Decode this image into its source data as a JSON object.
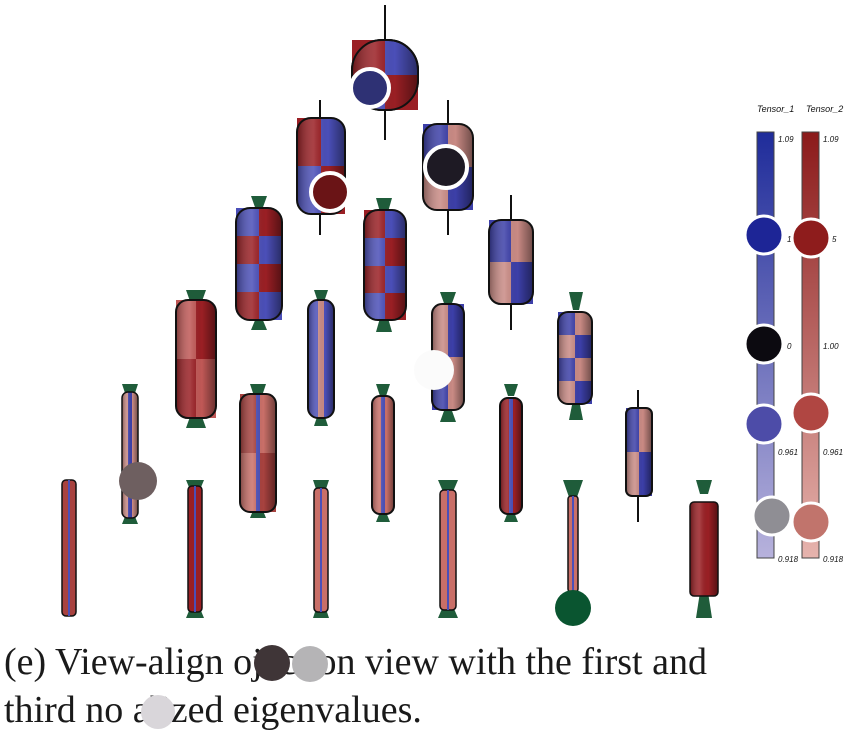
{
  "colorbars": {
    "tensor1": {
      "title": "Tensor_1",
      "ticks": [
        "1.09",
        "1",
        "0",
        "0.961",
        "0.918"
      ],
      "color_top": "#1f2c9a",
      "color_bottom": "#b7b2dc"
    },
    "tensor2": {
      "title": "Tensor_2",
      "ticks": [
        "1.09",
        "5",
        "1.00",
        "0.961",
        "0.918"
      ],
      "color_top": "#8b1a1a",
      "color_bottom": "#e6b4ae"
    }
  },
  "caption": {
    "line1": "(e) View-align      ojection view with the first and",
    "line2": "third no    alized eigenvalues."
  },
  "palette": {
    "blue": "#4b4fb8",
    "red": "#9a1f24",
    "pink": "#c9807a",
    "green": "#1f5c3a",
    "dark": "#141118"
  }
}
